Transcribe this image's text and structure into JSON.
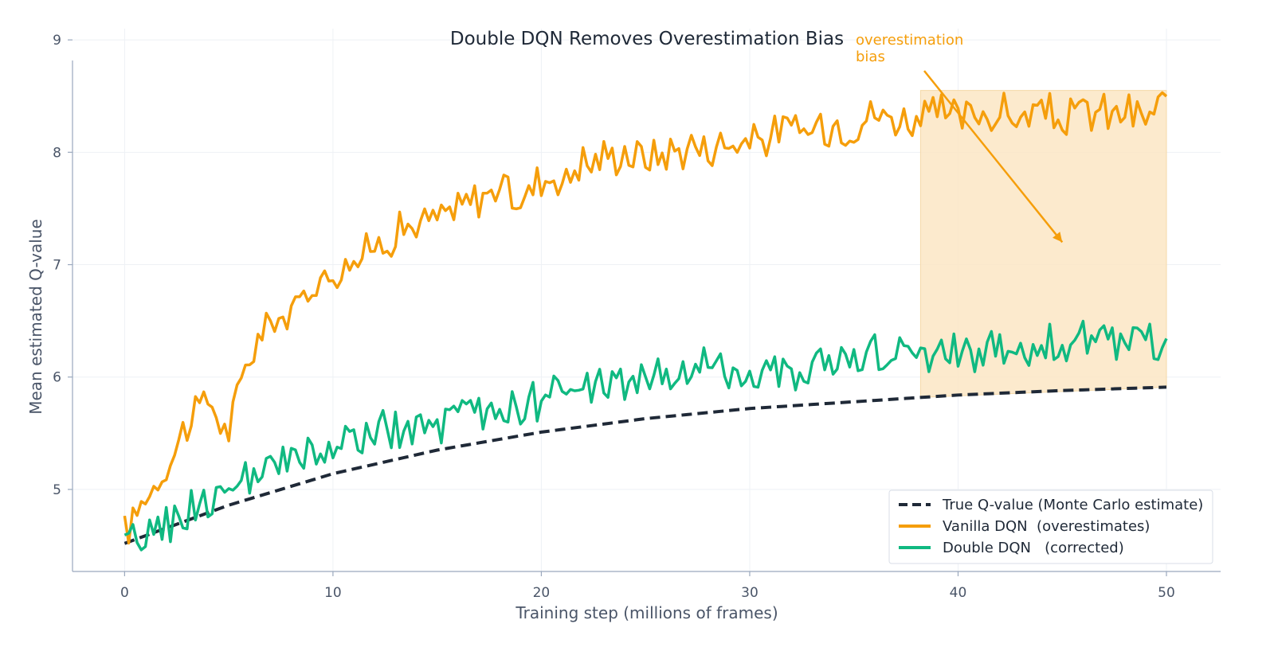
{
  "colors": {
    "true_q": "#1f2937",
    "vanilla": "#f59e0b",
    "double": "#10b981",
    "grid": "#eef1f5",
    "axis": "#9aa8bd",
    "shade": "#fbe6c4"
  },
  "chart_data": {
    "type": "line",
    "title": "Double DQN Removes Overestimation Bias",
    "xlabel": "Training step (millions of frames)",
    "ylabel": "Mean estimated Q-value",
    "xlim": [
      -2.5,
      52.6
    ],
    "ylim": [
      4.27,
      9.1
    ],
    "xticks": [
      0,
      10,
      20,
      30,
      40,
      50
    ],
    "yticks": [
      5,
      6,
      7,
      8,
      9
    ],
    "grid": true,
    "legend_position": "bottom-right",
    "series": [
      {
        "name": "True Q-value (Monte Carlo estimate)",
        "style": "dashed",
        "color": "#1f2937",
        "x": [
          0,
          5,
          10,
          15,
          20,
          25,
          30,
          35,
          40,
          45,
          50
        ],
        "y": [
          4.52,
          4.86,
          5.14,
          5.35,
          5.51,
          5.63,
          5.72,
          5.78,
          5.84,
          5.88,
          5.91
        ]
      },
      {
        "name": "Vanilla DQN  (overestimates)",
        "style": "solid",
        "color": "#f59e0b",
        "x": [
          0,
          1,
          2,
          3,
          4,
          5,
          6,
          7,
          8,
          9,
          10,
          11,
          12,
          13,
          14,
          15,
          16,
          17,
          18,
          19,
          20,
          21,
          22,
          23,
          24,
          25,
          26,
          27,
          28,
          29,
          30,
          31,
          32,
          33,
          34,
          35,
          36,
          37,
          38,
          39,
          40,
          41,
          42,
          43,
          44,
          45,
          46,
          47,
          48,
          49,
          50
        ],
        "y": [
          4.6,
          4.95,
          5.2,
          5.6,
          5.8,
          5.5,
          6.2,
          6.5,
          6.55,
          6.8,
          6.95,
          7.05,
          7.15,
          7.3,
          7.35,
          7.4,
          7.5,
          7.6,
          7.7,
          7.55,
          7.8,
          7.75,
          7.9,
          7.95,
          8.0,
          7.95,
          8.0,
          8.05,
          8.05,
          8.1,
          8.1,
          8.15,
          8.2,
          8.2,
          8.25,
          8.25,
          8.35,
          8.3,
          8.3,
          8.35,
          8.3,
          8.35,
          8.35,
          8.3,
          8.35,
          8.3,
          8.35,
          8.35,
          8.35,
          8.3,
          8.45
        ]
      },
      {
        "name": "Double DQN   (corrected)",
        "style": "solid",
        "color": "#10b981",
        "x": [
          0,
          1,
          2,
          3,
          4,
          5,
          6,
          7,
          8,
          9,
          10,
          11,
          12,
          13,
          14,
          15,
          16,
          17,
          18,
          19,
          20,
          21,
          22,
          23,
          24,
          25,
          26,
          27,
          28,
          29,
          30,
          31,
          32,
          33,
          34,
          35,
          36,
          37,
          38,
          39,
          40,
          41,
          42,
          43,
          44,
          45,
          46,
          47,
          48,
          49,
          50
        ],
        "y": [
          4.45,
          4.6,
          4.7,
          4.8,
          4.9,
          5.0,
          5.05,
          5.15,
          5.25,
          5.3,
          5.35,
          5.45,
          5.5,
          5.5,
          5.55,
          5.55,
          5.6,
          5.7,
          5.7,
          5.75,
          5.8,
          5.85,
          5.85,
          5.95,
          5.95,
          6.0,
          6.0,
          6.05,
          6.05,
          6.05,
          6.05,
          6.1,
          6.05,
          6.1,
          6.15,
          6.15,
          6.2,
          6.2,
          6.15,
          6.2,
          6.25,
          6.25,
          6.3,
          6.25,
          6.3,
          6.3,
          6.3,
          6.3,
          6.35,
          6.3,
          6.3
        ]
      }
    ],
    "shaded_region": {
      "x": [
        38.2,
        50
      ],
      "between": [
        "True Q-value (Monte Carlo estimate)",
        "Vanilla DQN  (overestimates)"
      ]
    },
    "annotations": [
      {
        "text": "overestimation",
        "text2": "bias",
        "color": "#f59e0b",
        "arrow_from": [
          40.2,
          8.9
        ],
        "arrow_to": [
          45,
          7.2
        ]
      }
    ]
  }
}
